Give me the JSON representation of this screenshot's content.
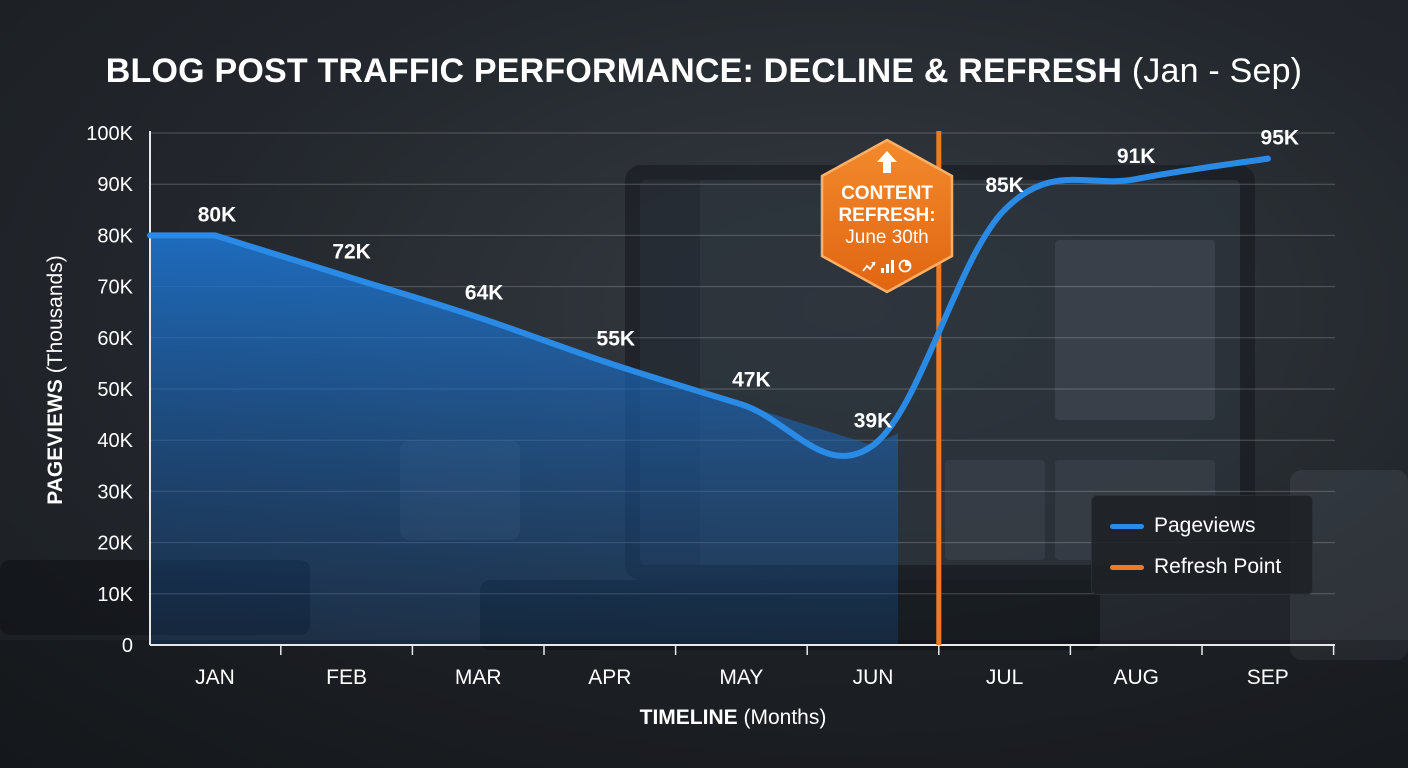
{
  "title": {
    "main": "BLOG POST TRAFFIC PERFORMANCE: DECLINE & REFRESH",
    "sub": "(Jan - Sep)"
  },
  "axes": {
    "ylabel_bold": "PAGEVIEWS",
    "ylabel_rest": "(Thousands)",
    "xlabel_bold": "TIMELINE",
    "xlabel_rest": "(Months)"
  },
  "legend": {
    "pageviews": "Pageviews",
    "refresh": "Refresh Point"
  },
  "annotation": {
    "line1": "CONTENT",
    "line2": "REFRESH:",
    "line3": "June 30th",
    "icon_top": "arrow-up-icon",
    "icons_bottom": [
      "trend-up-icon",
      "bar-chart-icon",
      "pie-chart-icon"
    ]
  },
  "colors": {
    "series": "#2a8be6",
    "refresh": "#f07a22",
    "badge": "#ec7a1e"
  },
  "chart_data": {
    "type": "line",
    "categories": [
      "JAN",
      "FEB",
      "MAR",
      "APR",
      "MAY",
      "JUN",
      "JUL",
      "AUG",
      "SEP"
    ],
    "series": [
      {
        "name": "Pageviews",
        "values": [
          80,
          72,
          64,
          55,
          47,
          39,
          85,
          91,
          95
        ]
      }
    ],
    "data_labels": [
      "80K",
      "72K",
      "64K",
      "55K",
      "47K",
      "39K",
      "85K",
      "91K",
      "95K"
    ],
    "y_ticks": [
      0,
      10,
      20,
      30,
      40,
      50,
      60,
      70,
      80,
      90,
      100
    ],
    "y_tick_labels": [
      "0",
      "10K",
      "20K",
      "30K",
      "40K",
      "50K",
      "60K",
      "70K",
      "80K",
      "90K",
      "100K"
    ],
    "ylim": [
      0,
      100
    ],
    "refresh_point": {
      "label": "Refresh Point",
      "position": "between JUN and JUL"
    },
    "area_fill_until": "JUN",
    "grid": true,
    "legend_position": "bottom-right"
  }
}
